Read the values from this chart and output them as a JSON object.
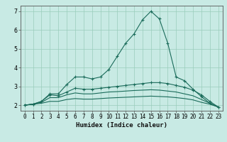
{
  "xlabel": "Humidex (Indice chaleur)",
  "bg_color": "#c8eae4",
  "line_color": "#1a6b5a",
  "grid_color": "#99ccbb",
  "xlim": [
    -0.5,
    23.5
  ],
  "ylim": [
    1.7,
    7.3
  ],
  "yticks": [
    2,
    3,
    4,
    5,
    6,
    7
  ],
  "xticks": [
    0,
    1,
    2,
    3,
    4,
    5,
    6,
    7,
    8,
    9,
    10,
    11,
    12,
    13,
    14,
    15,
    16,
    17,
    18,
    19,
    20,
    21,
    22,
    23
  ],
  "series": [
    {
      "x": [
        0,
        1,
        2,
        3,
        4,
        5,
        6,
        7,
        8,
        9,
        10,
        11,
        12,
        13,
        14,
        15,
        16,
        17,
        18,
        19,
        20,
        21,
        22,
        23
      ],
      "y": [
        2.0,
        2.05,
        2.2,
        2.6,
        2.6,
        3.1,
        3.5,
        3.5,
        3.4,
        3.5,
        3.9,
        4.6,
        5.3,
        5.8,
        6.55,
        7.0,
        6.6,
        5.3,
        3.5,
        3.3,
        2.85,
        2.45,
        2.1,
        1.9
      ],
      "marker": true
    },
    {
      "x": [
        0,
        1,
        2,
        3,
        4,
        5,
        6,
        7,
        8,
        9,
        10,
        11,
        12,
        13,
        14,
        15,
        16,
        17,
        18,
        19,
        20,
        21,
        22,
        23
      ],
      "y": [
        2.0,
        2.05,
        2.2,
        2.55,
        2.5,
        2.7,
        2.9,
        2.85,
        2.85,
        2.9,
        2.95,
        3.0,
        3.05,
        3.1,
        3.15,
        3.2,
        3.2,
        3.15,
        3.05,
        2.95,
        2.8,
        2.55,
        2.2,
        1.9
      ],
      "marker": true
    },
    {
      "x": [
        0,
        1,
        2,
        3,
        4,
        5,
        6,
        7,
        8,
        9,
        10,
        11,
        12,
        13,
        14,
        15,
        16,
        17,
        18,
        19,
        20,
        21,
        22,
        23
      ],
      "y": [
        2.0,
        2.05,
        2.15,
        2.4,
        2.4,
        2.55,
        2.65,
        2.6,
        2.6,
        2.65,
        2.7,
        2.72,
        2.75,
        2.78,
        2.8,
        2.82,
        2.8,
        2.75,
        2.7,
        2.6,
        2.5,
        2.3,
        2.1,
        1.9
      ],
      "marker": false
    },
    {
      "x": [
        0,
        1,
        2,
        3,
        4,
        5,
        6,
        7,
        8,
        9,
        10,
        11,
        12,
        13,
        14,
        15,
        16,
        17,
        18,
        19,
        20,
        21,
        22,
        23
      ],
      "y": [
        2.0,
        2.05,
        2.1,
        2.2,
        2.2,
        2.3,
        2.35,
        2.32,
        2.32,
        2.35,
        2.38,
        2.4,
        2.42,
        2.44,
        2.46,
        2.48,
        2.46,
        2.44,
        2.4,
        2.35,
        2.28,
        2.15,
        2.05,
        1.9
      ],
      "marker": false
    }
  ]
}
